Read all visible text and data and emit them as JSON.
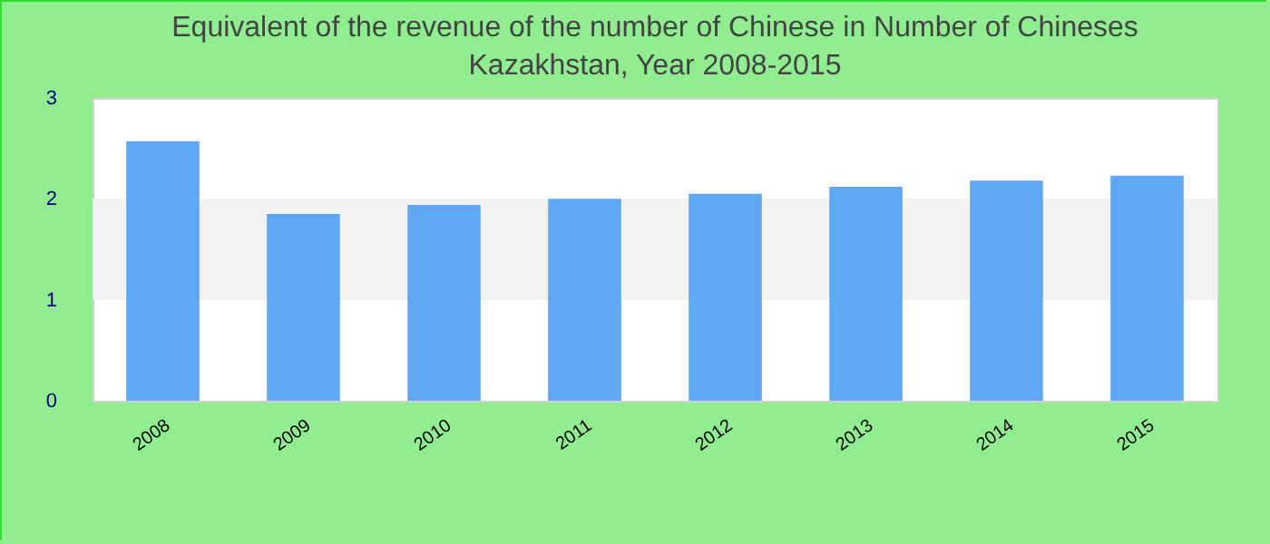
{
  "chart_data": {
    "type": "bar",
    "title": "Equivalent of the revenue of the number of Chinese  in Number of Chineses",
    "subtitle": "Kazakhstan, Year 2008-2015",
    "categories": [
      "2008",
      "2009",
      "2010",
      "2011",
      "2012",
      "2013",
      "2014",
      "2015"
    ],
    "values": [
      2.57,
      1.85,
      1.94,
      2.0,
      2.05,
      2.12,
      2.18,
      2.23
    ],
    "color": "#61a8f4",
    "ylim": [
      0,
      3
    ],
    "yticks": [
      0,
      1,
      2,
      3
    ],
    "bands": [
      {
        "axis": "y",
        "from": 1,
        "to": 2,
        "color": "#f2f2f2"
      }
    ]
  }
}
